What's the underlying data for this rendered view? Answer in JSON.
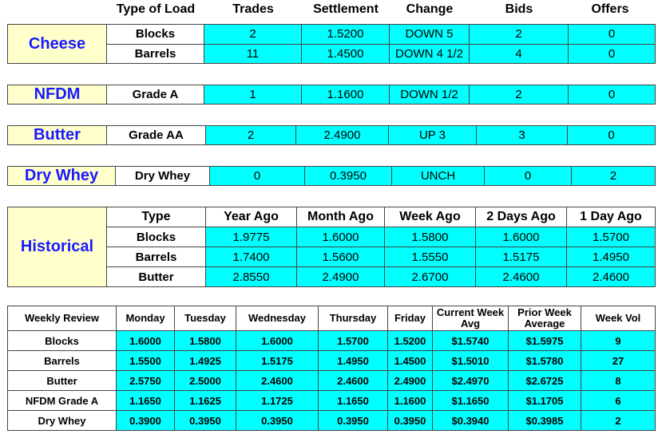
{
  "top_headers": [
    "Type of Load",
    "Trades",
    "Settlement",
    "Change",
    "Bids",
    "Offers"
  ],
  "cheese": {
    "label": "Cheese",
    "rows": [
      {
        "type": "Blocks",
        "trades": "2",
        "settlement": "1.5200",
        "change": "DOWN 5",
        "bids": "2",
        "offers": "0"
      },
      {
        "type": "Barrels",
        "trades": "11",
        "settlement": "1.4500",
        "change": "DOWN 4 1/2",
        "bids": "4",
        "offers": "0"
      }
    ]
  },
  "nfdm": {
    "label": "NFDM",
    "type": "Grade A",
    "trades": "1",
    "settlement": "1.1600",
    "change": "DOWN 1/2",
    "bids": "2",
    "offers": "0"
  },
  "butter": {
    "label": "Butter",
    "type": "Grade AA",
    "trades": "2",
    "settlement": "2.4900",
    "change": "UP 3",
    "bids": "3",
    "offers": "0"
  },
  "drywhey": {
    "label": "Dry Whey",
    "type": "Dry Whey",
    "trades": "0",
    "settlement": "0.3950",
    "change": "UNCH",
    "bids": "0",
    "offers": "2"
  },
  "historical": {
    "label": "Historical",
    "headers": [
      "Type",
      "Year Ago",
      "Month Ago",
      "Week Ago",
      "2 Days Ago",
      "1 Day Ago"
    ],
    "rows": [
      {
        "type": "Blocks",
        "values": [
          "1.9775",
          "1.6000",
          "1.5800",
          "1.6000",
          "1.5700"
        ]
      },
      {
        "type": "Barrels",
        "values": [
          "1.7400",
          "1.5600",
          "1.5550",
          "1.5175",
          "1.4950"
        ]
      },
      {
        "type": "Butter",
        "values": [
          "2.8550",
          "2.4900",
          "2.6700",
          "2.4600",
          "2.4600"
        ]
      }
    ]
  },
  "weekly": {
    "headers": [
      "Weekly Review",
      "Monday",
      "Tuesday",
      "Wednesday",
      "Thursday",
      "Friday",
      "Current Week Avg",
      "Prior Week Average",
      "Week Vol"
    ],
    "rows": [
      {
        "name": "Blocks",
        "values": [
          "1.6000",
          "1.5800",
          "1.6000",
          "1.5700",
          "1.5200",
          "$1.5740",
          "$1.5975",
          "9"
        ]
      },
      {
        "name": "Barrels",
        "values": [
          "1.5500",
          "1.4925",
          "1.5175",
          "1.4950",
          "1.4500",
          "$1.5010",
          "$1.5780",
          "27"
        ]
      },
      {
        "name": "Butter",
        "values": [
          "2.5750",
          "2.5000",
          "2.4600",
          "2.4600",
          "2.4900",
          "$2.4970",
          "$2.6725",
          "8"
        ]
      },
      {
        "name": "NFDM Grade A",
        "values": [
          "1.1650",
          "1.1625",
          "1.1725",
          "1.1650",
          "1.1600",
          "$1.1650",
          "$1.1705",
          "6"
        ]
      },
      {
        "name": "Dry Whey",
        "values": [
          "0.3900",
          "0.3950",
          "0.3950",
          "0.3950",
          "0.3950",
          "$0.3940",
          "$0.3985",
          "2"
        ]
      }
    ]
  }
}
